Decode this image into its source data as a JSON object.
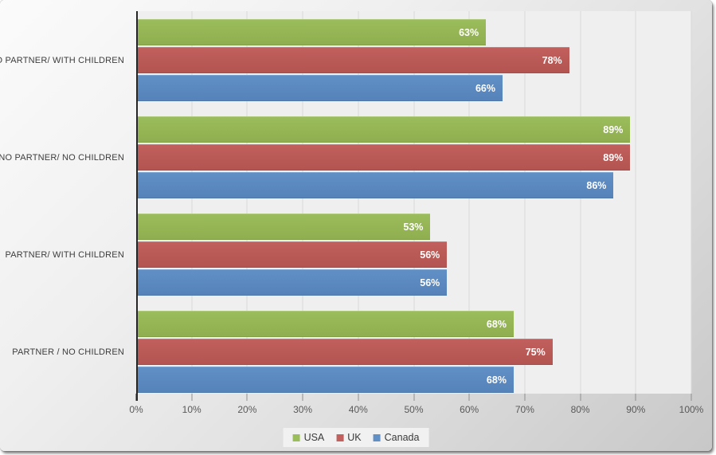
{
  "chart_data": {
    "type": "bar",
    "orientation": "horizontal",
    "title": "",
    "categories": [
      "NO PARTNER/ WITH CHILDREN",
      "NO PARTNER/ NO CHILDREN",
      "PARTNER/ WITH CHILDREN",
      "PARTNER / NO CHILDREN"
    ],
    "series": [
      {
        "name": "USA",
        "color": "#9cbd5c",
        "color_dark": "#8fae4f",
        "values": [
          63,
          89,
          53,
          68
        ]
      },
      {
        "name": "UK",
        "color": "#c1605d",
        "color_dark": "#b35451",
        "values": [
          78,
          89,
          56,
          75
        ]
      },
      {
        "name": "Canada",
        "color": "#6190c6",
        "color_dark": "#5583b9",
        "values": [
          66,
          86,
          56,
          68
        ]
      }
    ],
    "value_suffix": "%",
    "xlim": [
      0,
      100
    ],
    "x_tick_labels": [
      "0%",
      "10%",
      "20%",
      "30%",
      "40%",
      "50%",
      "60%",
      "70%",
      "80%",
      "90%",
      "100%"
    ],
    "data_labels": "inside-end",
    "grid": "vertical",
    "legend": {
      "position": "bottom",
      "entries": [
        "USA",
        "UK",
        "Canada"
      ]
    }
  },
  "colors": {
    "plot_background": "#efefef",
    "gridline": "#d8d8d8",
    "axis_line": "#262626",
    "tick": "#8f8f8f",
    "axis_label_text": "#595959",
    "category_label_text": "#3d3d3d",
    "value_label_text": "#ffffff",
    "legend_background": "#f1f1f1",
    "legend_text": "#3a3a3a"
  }
}
